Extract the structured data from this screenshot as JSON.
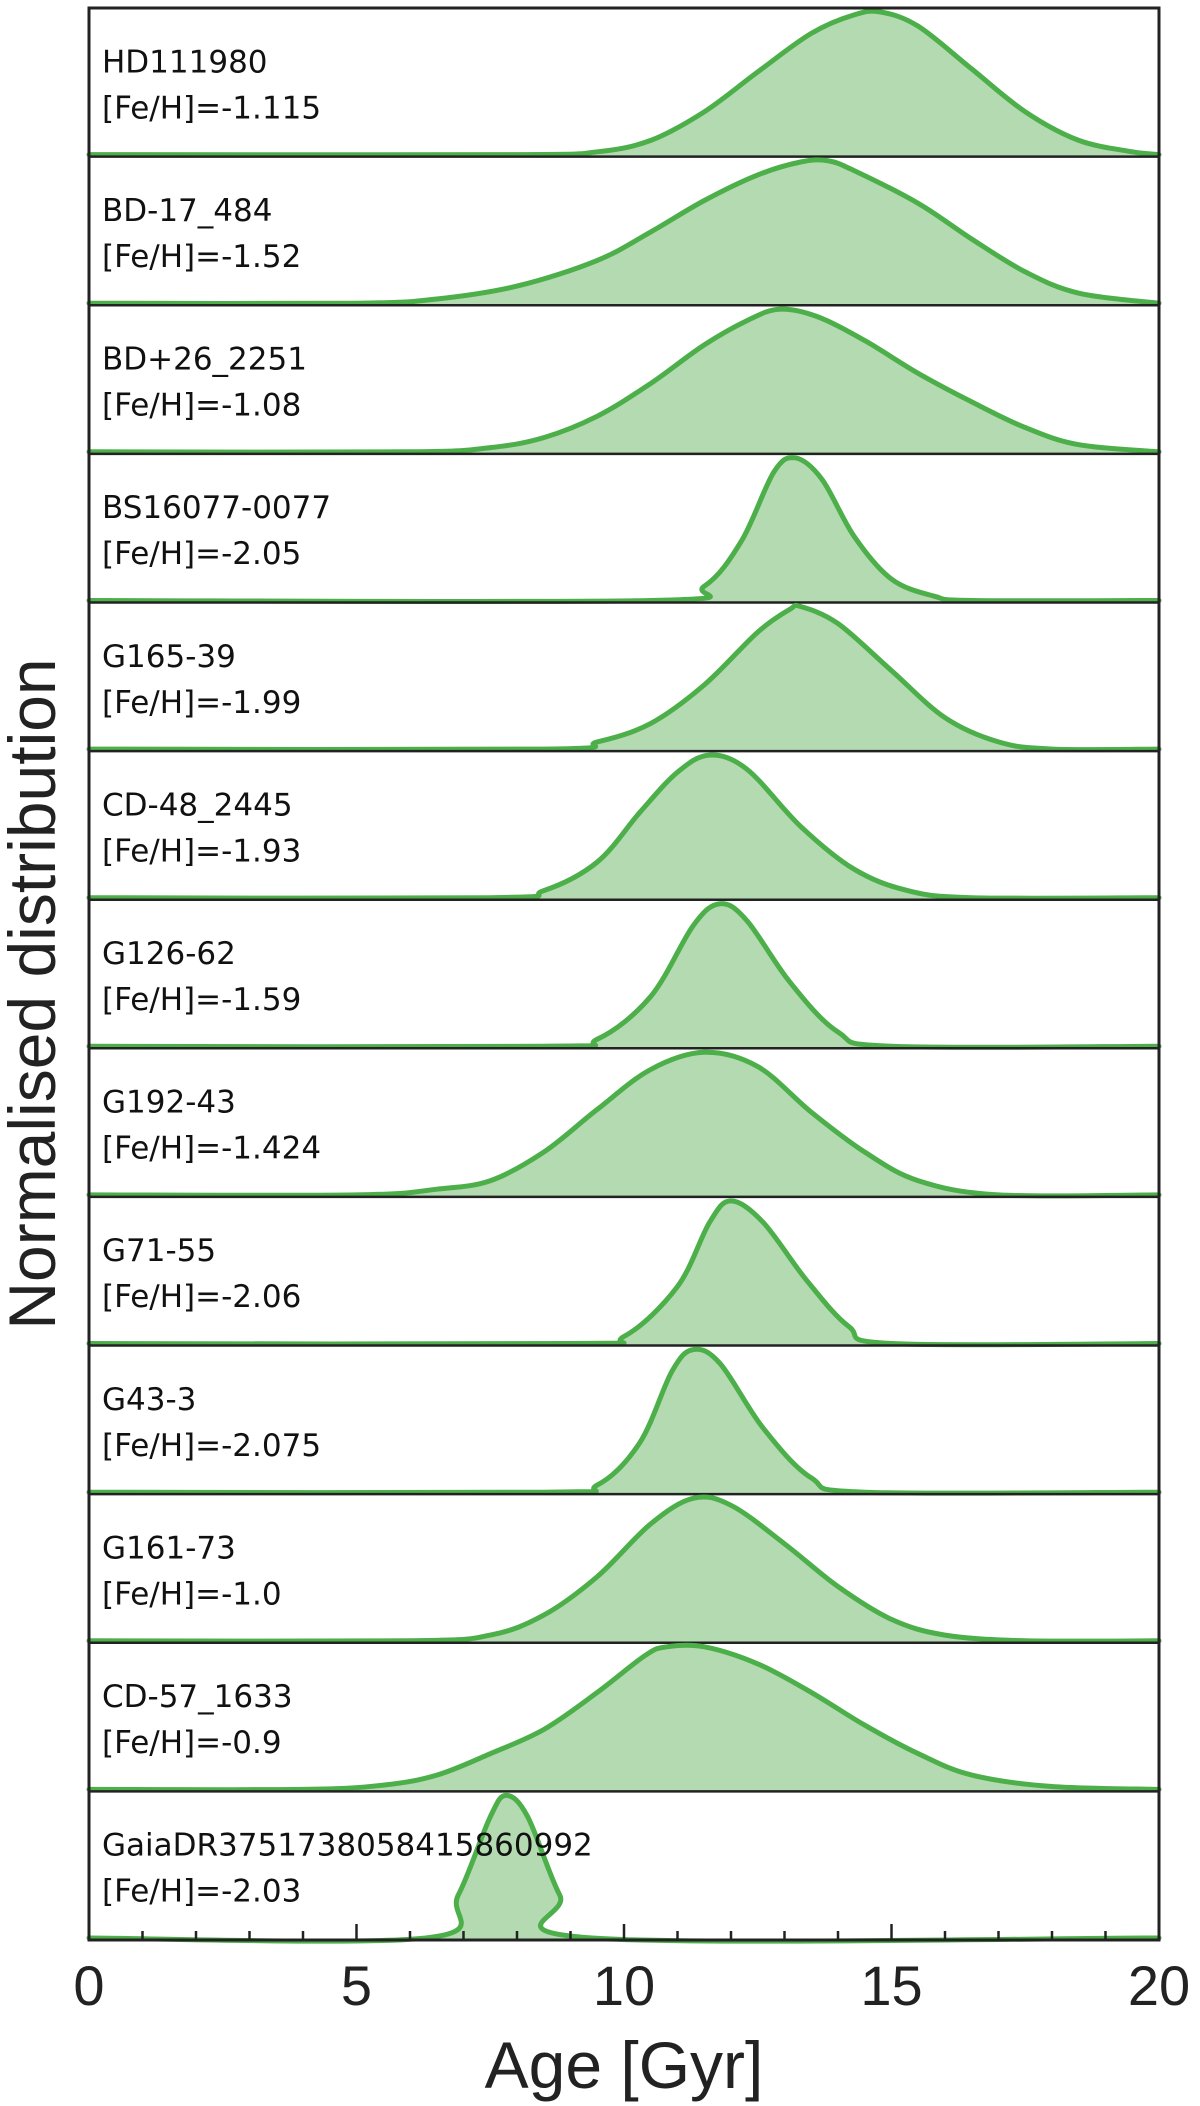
{
  "chart_data": {
    "type": "area",
    "xlabel": "Age [Gyr]",
    "ylabel": "Normalised distribution",
    "xlim": [
      0,
      20
    ],
    "xticks": [
      "0",
      "5",
      "10",
      "15",
      "20"
    ],
    "minor_tick_step": 1,
    "grid": false,
    "legend": "none",
    "fill_color": "#b3dab0",
    "line_color": "#4caf4a",
    "series": [
      {
        "star": "HD111980",
        "feh": "[Fe/H]=-1.115",
        "points": [
          [
            8.0,
            0.0
          ],
          [
            9.5,
            0.02
          ],
          [
            10.5,
            0.1
          ],
          [
            11.5,
            0.3
          ],
          [
            12.5,
            0.58
          ],
          [
            13.5,
            0.85
          ],
          [
            14.3,
            0.98
          ],
          [
            14.8,
            1.0
          ],
          [
            15.5,
            0.9
          ],
          [
            16.5,
            0.6
          ],
          [
            17.5,
            0.3
          ],
          [
            18.5,
            0.1
          ],
          [
            19.5,
            0.02
          ],
          [
            20,
            0.0
          ]
        ]
      },
      {
        "star": "BD-17_484",
        "feh": "[Fe/H]=-1.52",
        "points": [
          [
            5.0,
            0.0
          ],
          [
            6.5,
            0.03
          ],
          [
            8.0,
            0.12
          ],
          [
            9.5,
            0.3
          ],
          [
            10.5,
            0.5
          ],
          [
            11.5,
            0.72
          ],
          [
            12.5,
            0.9
          ],
          [
            13.3,
            0.99
          ],
          [
            13.8,
            1.0
          ],
          [
            14.3,
            0.93
          ],
          [
            15.5,
            0.7
          ],
          [
            16.5,
            0.45
          ],
          [
            17.5,
            0.22
          ],
          [
            18.5,
            0.07
          ],
          [
            20,
            0.0
          ]
        ]
      },
      {
        "star": "BD+26_2251",
        "feh": "[Fe/H]=-1.08",
        "points": [
          [
            6.0,
            0.0
          ],
          [
            7.5,
            0.03
          ],
          [
            8.5,
            0.1
          ],
          [
            9.5,
            0.25
          ],
          [
            10.5,
            0.48
          ],
          [
            11.5,
            0.75
          ],
          [
            12.3,
            0.92
          ],
          [
            12.9,
            1.0
          ],
          [
            13.6,
            0.95
          ],
          [
            14.5,
            0.78
          ],
          [
            15.5,
            0.55
          ],
          [
            16.5,
            0.35
          ],
          [
            17.5,
            0.17
          ],
          [
            18.5,
            0.05
          ],
          [
            20,
            0.0
          ]
        ]
      },
      {
        "star": "BS16077-0077",
        "feh": "[Fe/H]=-2.05",
        "points": [
          [
            10.5,
            0.0
          ],
          [
            11.5,
            0.1
          ],
          [
            12.2,
            0.42
          ],
          [
            12.8,
            0.9
          ],
          [
            13.2,
            1.0
          ],
          [
            13.7,
            0.85
          ],
          [
            14.3,
            0.45
          ],
          [
            15.0,
            0.15
          ],
          [
            15.8,
            0.03
          ],
          [
            16.5,
            0.0
          ]
        ]
      },
      {
        "star": "G165-39",
        "feh": "[Fe/H]=-1.99",
        "points": [
          [
            8.5,
            0.0
          ],
          [
            9.5,
            0.05
          ],
          [
            10.5,
            0.18
          ],
          [
            11.5,
            0.45
          ],
          [
            12.5,
            0.82
          ],
          [
            13.1,
            0.98
          ],
          [
            13.3,
            1.0
          ],
          [
            14.0,
            0.88
          ],
          [
            15.0,
            0.55
          ],
          [
            16.0,
            0.22
          ],
          [
            17.0,
            0.05
          ],
          [
            18.0,
            0.0
          ]
        ]
      },
      {
        "star": "CD-48_2445",
        "feh": "[Fe/H]=-1.93",
        "points": [
          [
            7.5,
            0.0
          ],
          [
            8.5,
            0.05
          ],
          [
            9.5,
            0.25
          ],
          [
            10.3,
            0.6
          ],
          [
            11.0,
            0.88
          ],
          [
            11.6,
            1.0
          ],
          [
            12.3,
            0.9
          ],
          [
            13.3,
            0.5
          ],
          [
            14.3,
            0.2
          ],
          [
            15.3,
            0.05
          ],
          [
            16.5,
            0.0
          ]
        ]
      },
      {
        "star": "G126-62",
        "feh": "[Fe/H]=-1.59",
        "points": [
          [
            8.5,
            0.0
          ],
          [
            9.5,
            0.05
          ],
          [
            10.5,
            0.35
          ],
          [
            11.3,
            0.85
          ],
          [
            11.8,
            1.0
          ],
          [
            12.3,
            0.88
          ],
          [
            13.1,
            0.45
          ],
          [
            14.0,
            0.1
          ],
          [
            15.0,
            0.0
          ]
        ]
      },
      {
        "star": "G192-43",
        "feh": "[Fe/H]=-1.424",
        "points": [
          [
            5.0,
            0.0
          ],
          [
            6.5,
            0.04
          ],
          [
            7.5,
            0.1
          ],
          [
            8.5,
            0.3
          ],
          [
            9.5,
            0.6
          ],
          [
            10.5,
            0.88
          ],
          [
            11.5,
            1.0
          ],
          [
            12.5,
            0.9
          ],
          [
            13.5,
            0.58
          ],
          [
            14.5,
            0.3
          ],
          [
            15.5,
            0.1
          ],
          [
            17.0,
            0.0
          ]
        ]
      },
      {
        "star": "G71-55",
        "feh": "[Fe/H]=-2.06",
        "points": [
          [
            9.0,
            0.0
          ],
          [
            10.0,
            0.05
          ],
          [
            11.0,
            0.4
          ],
          [
            11.6,
            0.85
          ],
          [
            12.0,
            1.0
          ],
          [
            12.6,
            0.85
          ],
          [
            13.4,
            0.45
          ],
          [
            14.2,
            0.12
          ],
          [
            15.0,
            0.0
          ]
        ]
      },
      {
        "star": "G43-3",
        "feh": "[Fe/H]=-2.075",
        "points": [
          [
            8.5,
            0.0
          ],
          [
            9.5,
            0.05
          ],
          [
            10.3,
            0.35
          ],
          [
            10.9,
            0.85
          ],
          [
            11.3,
            1.0
          ],
          [
            11.8,
            0.9
          ],
          [
            12.6,
            0.45
          ],
          [
            13.5,
            0.1
          ],
          [
            14.5,
            0.0
          ]
        ]
      },
      {
        "star": "G161-73",
        "feh": "[Fe/H]=-1.0",
        "points": [
          [
            6.0,
            0.0
          ],
          [
            7.5,
            0.04
          ],
          [
            8.5,
            0.18
          ],
          [
            9.5,
            0.45
          ],
          [
            10.5,
            0.82
          ],
          [
            11.3,
            1.0
          ],
          [
            12.0,
            0.95
          ],
          [
            13.0,
            0.68
          ],
          [
            14.0,
            0.38
          ],
          [
            15.0,
            0.15
          ],
          [
            16.0,
            0.04
          ],
          [
            17.5,
            0.0
          ]
        ]
      },
      {
        "star": "CD-57_1633",
        "feh": "[Fe/H]=-0.9",
        "points": [
          [
            4.0,
            0.0
          ],
          [
            5.5,
            0.03
          ],
          [
            6.5,
            0.1
          ],
          [
            7.5,
            0.25
          ],
          [
            8.5,
            0.42
          ],
          [
            9.5,
            0.68
          ],
          [
            10.4,
            0.94
          ],
          [
            10.8,
            1.0
          ],
          [
            11.5,
            1.0
          ],
          [
            12.5,
            0.88
          ],
          [
            13.5,
            0.68
          ],
          [
            14.5,
            0.45
          ],
          [
            15.5,
            0.25
          ],
          [
            16.5,
            0.1
          ],
          [
            18.0,
            0.02
          ],
          [
            20,
            0.0
          ]
        ]
      },
      {
        "star": "GaiaDR3751738058415860992",
        "feh": "[Fe/H]=-2.03",
        "points": [
          [
            6.3,
            0.0
          ],
          [
            6.9,
            0.3
          ],
          [
            7.5,
            0.85
          ],
          [
            7.8,
            1.0
          ],
          [
            8.2,
            0.85
          ],
          [
            8.8,
            0.3
          ],
          [
            9.4,
            0.0
          ]
        ]
      }
    ]
  }
}
